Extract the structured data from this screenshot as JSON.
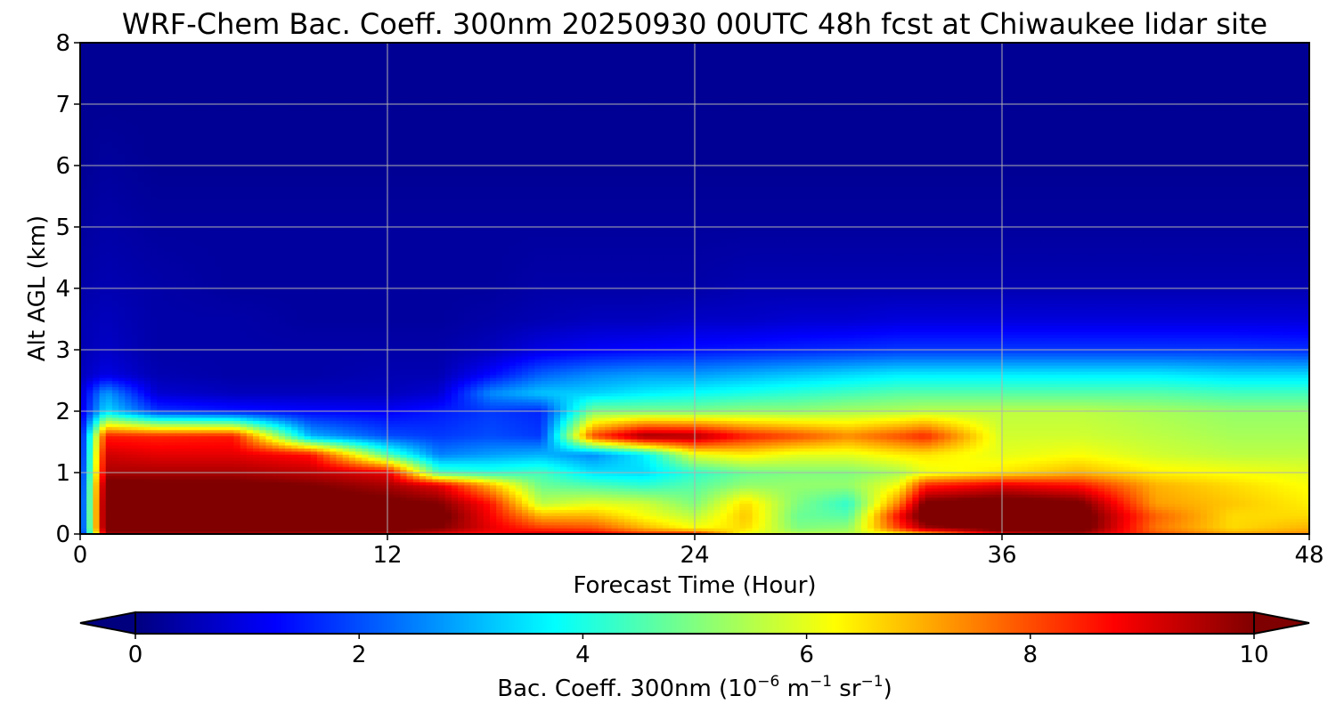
{
  "chart_data": {
    "type": "heatmap",
    "title": "WRF-Chem Bac. Coeff. 300nm  20250930 00UTC 48h fcst at Chiwaukee lidar site",
    "xlabel": "Forecast Time (Hour)",
    "ylabel": "Alt AGL (km)",
    "xlim": [
      0,
      48
    ],
    "ylim": [
      0,
      8
    ],
    "xticks": [
      0,
      12,
      24,
      36,
      48
    ],
    "yticks": [
      0,
      1,
      2,
      3,
      4,
      5,
      6,
      7,
      8
    ],
    "grid": true,
    "colormap": "jet",
    "colorbar": {
      "label_main": "Bac. Coeff. 300nm  (10",
      "label_exp1": "−6",
      "label_mid": " m",
      "label_exp2": "−1",
      "label_mid2": " sr",
      "label_exp3": "−1",
      "label_end": ")",
      "vmin": 0,
      "vmax": 10,
      "ticks": [
        0,
        2,
        4,
        6,
        8,
        10
      ],
      "extend": "both",
      "orientation": "horizontal",
      "placement": "bottom"
    },
    "y_levels_km": [
      0.0,
      0.1,
      0.3,
      0.5,
      0.8,
      1.0,
      1.3,
      1.6,
      2.0,
      2.3,
      2.6,
      3.0,
      3.5,
      4.0,
      5.0,
      6.0,
      7.0,
      8.0
    ],
    "columns": [
      {
        "hour": 0,
        "values": [
          1.0,
          1.2,
          1.2,
          1.2,
          1.1,
          1.1,
          1.0,
          1.0,
          0.9,
          0.8,
          0.6,
          0.5,
          0.5,
          0.4,
          0.3,
          0.2,
          0.2,
          0.2
        ]
      },
      {
        "hour": 1,
        "values": [
          9.5,
          10.5,
          10.5,
          10.5,
          10.3,
          9.6,
          9.2,
          8.5,
          3.5,
          2.8,
          1.0,
          0.7,
          0.6,
          0.5,
          0.4,
          0.3,
          0.2,
          0.2
        ]
      },
      {
        "hour": 3,
        "values": [
          9.5,
          10.5,
          10.5,
          10.5,
          10.2,
          9.6,
          9.0,
          8.4,
          1.8,
          0.8,
          0.5,
          0.4,
          0.4,
          0.4,
          0.3,
          0.2,
          0.2,
          0.2
        ]
      },
      {
        "hour": 6,
        "values": [
          9.5,
          10.5,
          10.5,
          10.5,
          10.2,
          9.6,
          9.0,
          8.5,
          1.5,
          0.6,
          0.4,
          0.4,
          0.4,
          0.3,
          0.3,
          0.2,
          0.2,
          0.2
        ]
      },
      {
        "hour": 9,
        "values": [
          9.5,
          10.4,
          10.5,
          10.4,
          10.0,
          9.4,
          8.6,
          3.0,
          1.3,
          0.6,
          0.4,
          0.4,
          0.3,
          0.3,
          0.3,
          0.2,
          0.2,
          0.2
        ]
      },
      {
        "hour": 12,
        "values": [
          9.5,
          10.3,
          10.4,
          10.2,
          9.6,
          9.0,
          4.5,
          2.0,
          1.2,
          0.6,
          0.5,
          0.4,
          0.3,
          0.3,
          0.3,
          0.2,
          0.2,
          0.2
        ]
      },
      {
        "hour": 14,
        "values": [
          9.0,
          10.0,
          10.3,
          10.0,
          9.0,
          4.5,
          2.5,
          1.8,
          1.5,
          0.8,
          0.5,
          0.4,
          0.3,
          0.3,
          0.3,
          0.2,
          0.2,
          0.2
        ]
      },
      {
        "hour": 16,
        "values": [
          8.6,
          9.0,
          8.8,
          8.6,
          7.0,
          4.2,
          2.8,
          2.0,
          1.8,
          2.6,
          1.3,
          0.6,
          0.4,
          0.3,
          0.3,
          0.2,
          0.2,
          0.2
        ]
      },
      {
        "hour": 18,
        "values": [
          9.2,
          8.2,
          7.0,
          5.6,
          4.8,
          4.4,
          3.0,
          1.8,
          1.6,
          3.2,
          2.2,
          1.0,
          0.5,
          0.4,
          0.3,
          0.2,
          0.2,
          0.2
        ]
      },
      {
        "hour": 20,
        "values": [
          9.0,
          8.0,
          7.0,
          6.0,
          4.5,
          3.5,
          2.6,
          8.0,
          5.0,
          3.3,
          2.6,
          1.2,
          0.6,
          0.4,
          0.3,
          0.2,
          0.2,
          0.2
        ]
      },
      {
        "hour": 22,
        "values": [
          8.4,
          7.0,
          6.2,
          5.8,
          4.2,
          3.4,
          3.6,
          9.8,
          5.0,
          3.6,
          2.8,
          1.3,
          0.6,
          0.4,
          0.3,
          0.2,
          0.2,
          0.2
        ]
      },
      {
        "hour": 24,
        "values": [
          8.6,
          6.2,
          5.6,
          5.0,
          4.6,
          4.2,
          6.0,
          9.6,
          5.0,
          3.8,
          2.8,
          1.4,
          0.7,
          0.4,
          0.3,
          0.2,
          0.2,
          0.2
        ]
      },
      {
        "hour": 26,
        "values": [
          6.0,
          6.6,
          6.8,
          6.6,
          5.2,
          4.8,
          6.4,
          8.5,
          5.2,
          4.0,
          3.0,
          1.5,
          0.7,
          0.5,
          0.3,
          0.2,
          0.2,
          0.2
        ]
      },
      {
        "hour": 28,
        "values": [
          5.6,
          5.0,
          4.8,
          5.0,
          5.2,
          5.0,
          6.0,
          8.0,
          5.2,
          4.2,
          3.2,
          1.6,
          0.8,
          0.5,
          0.3,
          0.2,
          0.2,
          0.2
        ]
      },
      {
        "hour": 30,
        "values": [
          5.5,
          5.2,
          4.6,
          4.2,
          5.2,
          5.0,
          6.0,
          7.4,
          5.4,
          4.4,
          3.4,
          1.7,
          0.8,
          0.5,
          0.3,
          0.2,
          0.2,
          0.2
        ]
      },
      {
        "hour": 32,
        "values": [
          6.2,
          8.2,
          8.8,
          7.6,
          6.2,
          5.4,
          6.4,
          8.0,
          5.5,
          4.6,
          3.6,
          1.8,
          0.9,
          0.5,
          0.3,
          0.2,
          0.2,
          0.2
        ]
      },
      {
        "hour": 33,
        "values": [
          6.8,
          9.6,
          10.5,
          10.2,
          8.4,
          6.0,
          6.5,
          8.4,
          5.6,
          4.6,
          3.6,
          1.8,
          0.9,
          0.5,
          0.3,
          0.2,
          0.2,
          0.2
        ]
      },
      {
        "hour": 36,
        "values": [
          9.0,
          10.5,
          10.5,
          10.5,
          9.0,
          6.5,
          6.0,
          5.8,
          5.6,
          4.6,
          3.6,
          1.8,
          0.9,
          0.5,
          0.3,
          0.2,
          0.2,
          0.2
        ]
      },
      {
        "hour": 39,
        "values": [
          9.5,
          10.5,
          10.5,
          10.2,
          8.6,
          7.0,
          6.2,
          5.8,
          5.6,
          4.6,
          3.6,
          1.8,
          0.9,
          0.5,
          0.3,
          0.2,
          0.2,
          0.2
        ]
      },
      {
        "hour": 42,
        "values": [
          8.0,
          7.6,
          7.8,
          7.2,
          7.0,
          6.4,
          5.8,
          5.6,
          5.4,
          4.6,
          3.6,
          1.8,
          0.9,
          0.5,
          0.3,
          0.2,
          0.2,
          0.2
        ]
      },
      {
        "hour": 45,
        "values": [
          7.2,
          6.6,
          6.6,
          6.8,
          6.6,
          6.2,
          5.6,
          5.4,
          5.2,
          4.4,
          3.4,
          1.8,
          0.9,
          0.5,
          0.3,
          0.2,
          0.2,
          0.2
        ]
      },
      {
        "hour": 48,
        "values": [
          7.4,
          7.0,
          6.6,
          6.4,
          6.2,
          6.0,
          5.6,
          5.4,
          5.2,
          4.4,
          3.4,
          1.7,
          0.9,
          0.5,
          0.3,
          0.2,
          0.2,
          0.2
        ]
      }
    ]
  }
}
